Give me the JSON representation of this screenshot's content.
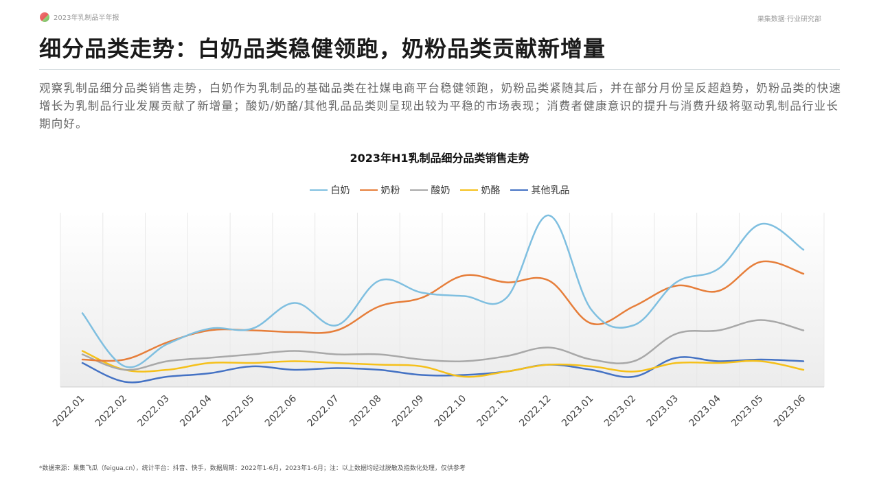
{
  "header": {
    "report_name": "2023年乳制品半年报",
    "department": "果集数据·行业研究部"
  },
  "page": {
    "title": "细分品类走势：白奶品类稳健领跑，奶粉品类贡献新增量",
    "description": "观察乳制品细分品类销售走势，白奶作为乳制品的基础品类在社媒电商平台稳健领跑，奶粉品类紧随其后，并在部分月份呈反超趋势，奶粉品类的快速增长为乳制品行业发展贡献了新增量；酸奶/奶酪/其他乳品品类则呈现出较为平稳的市场表现；消费者健康意识的提升与消费升级将驱动乳制品行业长期向好。",
    "footnote": "*数据来源：果集飞瓜（feigua.cn），统计平台：抖音、快手，数据周期：2022年1-6月，2023年1-6月；注：以上数据均经过脱敏及指数化处理，仅供参考"
  },
  "chart_data": {
    "type": "line",
    "title": "2023年H1乳制品细分品类销售走势",
    "categories": [
      "2022.01",
      "2022.02",
      "2022.03",
      "2022.04",
      "2022.05",
      "2022.06",
      "2022.07",
      "2022.08",
      "2022.09",
      "2022.10",
      "2022.11",
      "2022.12",
      "2023.01",
      "2023.02",
      "2023.03",
      "2023.04",
      "2023.05",
      "2023.06"
    ],
    "series": [
      {
        "name": "白奶",
        "color": "#7fbfe0",
        "values": [
          43,
          12,
          25,
          34,
          34,
          49,
          36,
          62,
          55,
          53,
          52,
          100,
          45,
          36,
          61,
          69,
          95,
          80
        ]
      },
      {
        "name": "奶粉",
        "color": "#e67e3a",
        "values": [
          16,
          16,
          26,
          33,
          33,
          32,
          33,
          47,
          52,
          65,
          61,
          62,
          37,
          47,
          59,
          56,
          73,
          66
        ]
      },
      {
        "name": "酸奶",
        "color": "#a8a8a8",
        "values": [
          19,
          10,
          15,
          17,
          19,
          21,
          19,
          19,
          16,
          15,
          18,
          23,
          16,
          15,
          31,
          33,
          39,
          33
        ]
      },
      {
        "name": "奶酪",
        "color": "#f5c01a",
        "values": [
          21,
          10,
          10,
          14,
          14,
          15,
          14,
          13,
          12,
          6,
          9,
          13,
          12,
          9,
          14,
          14,
          15,
          10
        ]
      },
      {
        "name": "其他乳品",
        "color": "#4472c4",
        "values": [
          14,
          3,
          6,
          8,
          12,
          10,
          11,
          10,
          7,
          7,
          9,
          13,
          10,
          6,
          17,
          15,
          16,
          15
        ]
      }
    ],
    "ylim": [
      0,
      100
    ],
    "grid": false,
    "legend_position": "top-center"
  }
}
